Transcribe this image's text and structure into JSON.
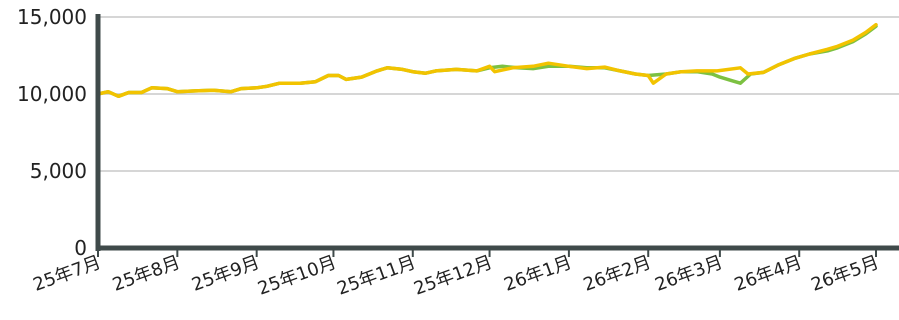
{
  "chart_data": {
    "type": "line",
    "ylim": [
      0,
      15000
    ],
    "grid": true,
    "y_ticks": [
      {
        "value": 0,
        "label": "0"
      },
      {
        "value": 5000,
        "label": "5,000"
      },
      {
        "value": 10000,
        "label": "10,000"
      },
      {
        "value": 15000,
        "label": "15,000"
      }
    ],
    "x_ticks": [
      {
        "date": "2025-07-01",
        "label": "25年7月"
      },
      {
        "date": "2025-08-01",
        "label": "25年8月"
      },
      {
        "date": "2025-09-01",
        "label": "25年9月"
      },
      {
        "date": "2025-10-01",
        "label": "25年10月"
      },
      {
        "date": "2025-11-01",
        "label": "25年11月"
      },
      {
        "date": "2025-12-01",
        "label": "25年12月"
      },
      {
        "date": "2026-01-01",
        "label": "26年1月"
      },
      {
        "date": "2026-02-01",
        "label": "26年2月"
      },
      {
        "date": "2026-03-01",
        "label": "26年3月"
      },
      {
        "date": "2026-04-01",
        "label": "26年4月"
      },
      {
        "date": "2026-05-01",
        "label": "26年5月"
      }
    ],
    "series": [
      {
        "color": "#7cc142",
        "points": [
          [
            "2025-07-01",
            10000
          ],
          [
            "2025-07-05",
            10150
          ],
          [
            "2025-07-09",
            9850
          ],
          [
            "2025-07-13",
            10100
          ],
          [
            "2025-07-18",
            10100
          ],
          [
            "2025-07-22",
            10400
          ],
          [
            "2025-07-28",
            10350
          ],
          [
            "2025-08-01",
            10150
          ],
          [
            "2025-08-08",
            10200
          ],
          [
            "2025-08-15",
            10250
          ],
          [
            "2025-08-22",
            10150
          ],
          [
            "2025-08-26",
            10350
          ],
          [
            "2025-09-01",
            10400
          ],
          [
            "2025-09-05",
            10500
          ],
          [
            "2025-09-10",
            10700
          ],
          [
            "2025-09-18",
            10700
          ],
          [
            "2025-09-24",
            10800
          ],
          [
            "2025-09-29",
            11200
          ],
          [
            "2025-10-03",
            11200
          ],
          [
            "2025-10-06",
            10950
          ],
          [
            "2025-10-12",
            11100
          ],
          [
            "2025-10-18",
            11500
          ],
          [
            "2025-10-22",
            11700
          ],
          [
            "2025-10-28",
            11600
          ],
          [
            "2025-11-01",
            11450
          ],
          [
            "2025-11-06",
            11350
          ],
          [
            "2025-11-10",
            11500
          ],
          [
            "2025-11-18",
            11600
          ],
          [
            "2025-11-26",
            11500
          ],
          [
            "2025-12-01",
            11700
          ],
          [
            "2025-12-06",
            11800
          ],
          [
            "2025-12-12",
            11700
          ],
          [
            "2025-12-18",
            11650
          ],
          [
            "2025-12-24",
            11800
          ],
          [
            "2026-01-01",
            11800
          ],
          [
            "2026-01-08",
            11700
          ],
          [
            "2026-01-15",
            11700
          ],
          [
            "2026-01-21",
            11500
          ],
          [
            "2026-01-27",
            11300
          ],
          [
            "2026-02-01",
            11200
          ],
          [
            "2026-02-08",
            11300
          ],
          [
            "2026-02-14",
            11450
          ],
          [
            "2026-02-20",
            11450
          ],
          [
            "2026-02-26",
            11300
          ],
          [
            "2026-03-01",
            11100
          ],
          [
            "2026-03-06",
            10850
          ],
          [
            "2026-03-09",
            10700
          ],
          [
            "2026-03-13",
            11300
          ],
          [
            "2026-03-18",
            11400
          ],
          [
            "2026-03-24",
            11900
          ],
          [
            "2026-03-30",
            12300
          ],
          [
            "2026-04-05",
            12600
          ],
          [
            "2026-04-12",
            12800
          ],
          [
            "2026-04-16",
            13000
          ],
          [
            "2026-04-22",
            13400
          ],
          [
            "2026-04-27",
            13900
          ],
          [
            "2026-05-01",
            14400
          ]
        ]
      },
      {
        "color": "#f2c300",
        "points": [
          [
            "2025-07-01",
            10000
          ],
          [
            "2025-07-05",
            10150
          ],
          [
            "2025-07-09",
            9850
          ],
          [
            "2025-07-13",
            10100
          ],
          [
            "2025-07-18",
            10100
          ],
          [
            "2025-07-22",
            10400
          ],
          [
            "2025-07-28",
            10350
          ],
          [
            "2025-08-01",
            10150
          ],
          [
            "2025-08-08",
            10200
          ],
          [
            "2025-08-15",
            10250
          ],
          [
            "2025-08-22",
            10150
          ],
          [
            "2025-08-26",
            10350
          ],
          [
            "2025-09-01",
            10400
          ],
          [
            "2025-09-05",
            10500
          ],
          [
            "2025-09-10",
            10700
          ],
          [
            "2025-09-18",
            10700
          ],
          [
            "2025-09-24",
            10800
          ],
          [
            "2025-09-29",
            11200
          ],
          [
            "2025-10-03",
            11200
          ],
          [
            "2025-10-06",
            10950
          ],
          [
            "2025-10-12",
            11100
          ],
          [
            "2025-10-18",
            11500
          ],
          [
            "2025-10-22",
            11700
          ],
          [
            "2025-10-28",
            11600
          ],
          [
            "2025-11-01",
            11450
          ],
          [
            "2025-11-06",
            11350
          ],
          [
            "2025-11-10",
            11500
          ],
          [
            "2025-11-18",
            11600
          ],
          [
            "2025-11-26",
            11500
          ],
          [
            "2025-12-01",
            11800
          ],
          [
            "2025-12-03",
            11450
          ],
          [
            "2025-12-10",
            11700
          ],
          [
            "2025-12-18",
            11800
          ],
          [
            "2025-12-24",
            12000
          ],
          [
            "2026-01-01",
            11800
          ],
          [
            "2026-01-08",
            11650
          ],
          [
            "2026-01-15",
            11750
          ],
          [
            "2026-01-21",
            11500
          ],
          [
            "2026-01-27",
            11300
          ],
          [
            "2026-02-01",
            11200
          ],
          [
            "2026-02-03",
            10700
          ],
          [
            "2026-02-08",
            11300
          ],
          [
            "2026-02-14",
            11450
          ],
          [
            "2026-02-20",
            11500
          ],
          [
            "2026-02-28",
            11500
          ],
          [
            "2026-03-09",
            11700
          ],
          [
            "2026-03-12",
            11300
          ],
          [
            "2026-03-18",
            11400
          ],
          [
            "2026-03-24",
            11900
          ],
          [
            "2026-03-30",
            12300
          ],
          [
            "2026-04-05",
            12600
          ],
          [
            "2026-04-12",
            12900
          ],
          [
            "2026-04-16",
            13100
          ],
          [
            "2026-04-22",
            13500
          ],
          [
            "2026-04-27",
            14000
          ],
          [
            "2026-05-01",
            14500
          ]
        ]
      }
    ]
  }
}
